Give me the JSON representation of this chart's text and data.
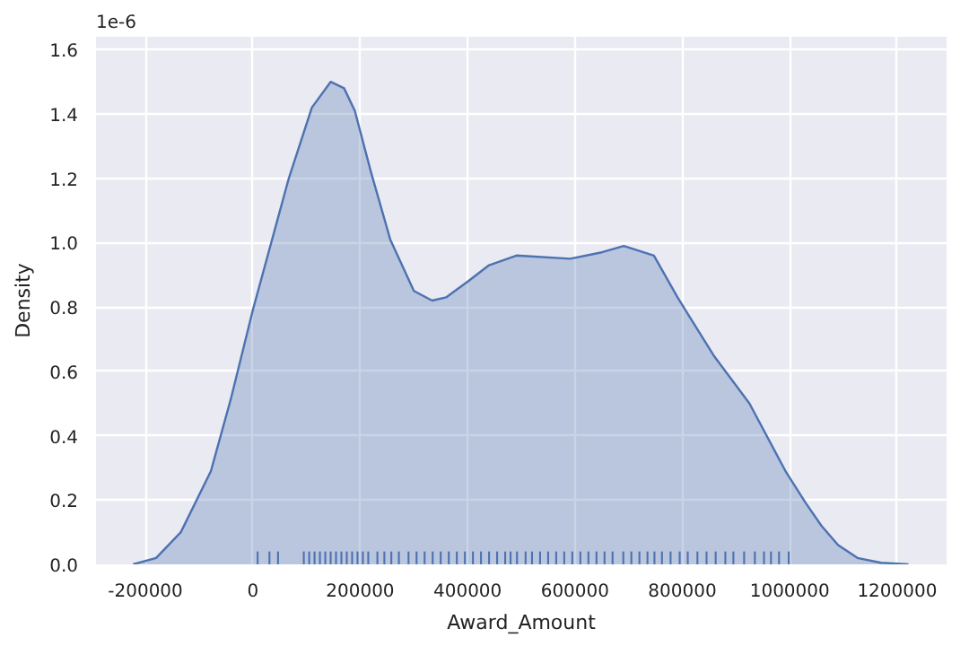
{
  "chart_data": {
    "type": "area",
    "xlabel": "Award_Amount",
    "ylabel": "Density",
    "annotations": [
      "1e-6"
    ],
    "xlim": [
      -292000,
      1292000
    ],
    "ylim": [
      0,
      1.64
    ],
    "xticks": [
      -200000,
      0,
      200000,
      400000,
      600000,
      800000,
      1000000,
      1200000
    ],
    "yticks": [
      {
        "value": 0,
        "label": "0.0"
      },
      {
        "value": 0.2,
        "label": "0.2"
      },
      {
        "value": 0.4,
        "label": "0.4"
      },
      {
        "value": 0.6,
        "label": "0.6"
      },
      {
        "value": 0.8,
        "label": "0.8"
      },
      {
        "value": 1.0,
        "label": "1.0"
      },
      {
        "value": 1.2,
        "label": "1.2"
      },
      {
        "value": 1.4,
        "label": "1.4"
      },
      {
        "value": 1.6,
        "label": "1.6"
      }
    ],
    "grid": true,
    "series": [
      {
        "color": "#4c72b0",
        "x": [
          -223000,
          -180000,
          -134000,
          -78000,
          -40000,
          0,
          67000,
          110000,
          145000,
          170000,
          190000,
          220000,
          256000,
          300000,
          334000,
          360000,
          401000,
          440000,
          491000,
          591000,
          650000,
          691000,
          747000,
          791000,
          858000,
          925000,
          992000,
          1030000,
          1059000,
          1090000,
          1126000,
          1170000,
          1221000
        ],
        "values": [
          0,
          0.02,
          0.1,
          0.29,
          0.52,
          0.79,
          1.2,
          1.42,
          1.5,
          1.48,
          1.41,
          1.22,
          1.01,
          0.85,
          0.82,
          0.83,
          0.88,
          0.93,
          0.96,
          0.95,
          0.97,
          0.99,
          0.96,
          0.83,
          0.65,
          0.5,
          0.29,
          0.19,
          0.12,
          0.06,
          0.02,
          0.005,
          0
        ]
      },
      {
        "type": "bar",
        "color": "#4c72b0",
        "x": [
          9000,
          31000,
          47000,
          95000,
          105000,
          115000,
          125000,
          135000,
          145000,
          155000,
          165000,
          175000,
          185000,
          195000,
          205000,
          215000,
          232000,
          245000,
          258000,
          272000,
          290000,
          305000,
          320000,
          335000,
          350000,
          365000,
          380000,
          395000,
          410000,
          425000,
          440000,
          455000,
          470000,
          480000,
          492000,
          508000,
          520000,
          535000,
          550000,
          565000,
          580000,
          595000,
          610000,
          625000,
          640000,
          655000,
          670000,
          690000,
          705000,
          720000,
          735000,
          748000,
          762000,
          778000,
          795000,
          810000,
          828000,
          845000,
          862000,
          880000,
          895000,
          915000,
          935000,
          952000,
          965000,
          980000,
          998000
        ],
        "values": [
          0.04,
          0.04,
          0.04,
          0.04,
          0.04,
          0.04,
          0.04,
          0.04,
          0.04,
          0.04,
          0.04,
          0.04,
          0.04,
          0.04,
          0.04,
          0.04,
          0.04,
          0.04,
          0.04,
          0.04,
          0.04,
          0.04,
          0.04,
          0.04,
          0.04,
          0.04,
          0.04,
          0.04,
          0.04,
          0.04,
          0.04,
          0.04,
          0.04,
          0.04,
          0.04,
          0.04,
          0.04,
          0.04,
          0.04,
          0.04,
          0.04,
          0.04,
          0.04,
          0.04,
          0.04,
          0.04,
          0.04,
          0.04,
          0.04,
          0.04,
          0.04,
          0.04,
          0.04,
          0.04,
          0.04,
          0.04,
          0.04,
          0.04,
          0.04,
          0.04,
          0.04,
          0.04,
          0.04,
          0.04,
          0.04,
          0.04,
          0.04
        ]
      }
    ]
  }
}
